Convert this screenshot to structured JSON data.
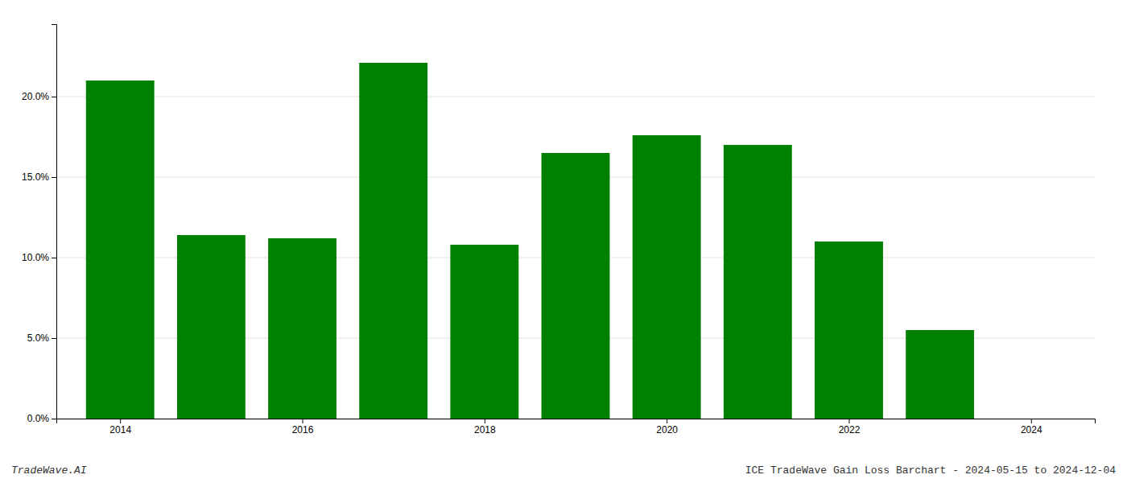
{
  "chart_data": {
    "type": "bar",
    "x": [
      2014,
      2015,
      2016,
      2017,
      2018,
      2019,
      2020,
      2021,
      2022,
      2023
    ],
    "values": [
      0.21,
      0.114,
      0.112,
      0.221,
      0.108,
      0.165,
      0.176,
      0.17,
      0.11,
      0.055
    ],
    "color": "#008000",
    "xlim": [
      2013.3,
      2024.7
    ],
    "xticks": [
      2014,
      2016,
      2018,
      2020,
      2022,
      2024
    ],
    "ylim": [
      0,
      0.245
    ],
    "yticks": [
      {
        "value": 0.0,
        "label": "0.0%"
      },
      {
        "value": 0.05,
        "label": "5.0%"
      },
      {
        "value": 0.1,
        "label": "10.0%"
      },
      {
        "value": 0.15,
        "label": "15.0%"
      },
      {
        "value": 0.2,
        "label": "20.0%"
      }
    ],
    "grid": true,
    "annotations": [
      "TradeWave.AI",
      "ICE TradeWave Gain Loss Barchart - 2024-05-15 to 2024-12-04"
    ]
  }
}
